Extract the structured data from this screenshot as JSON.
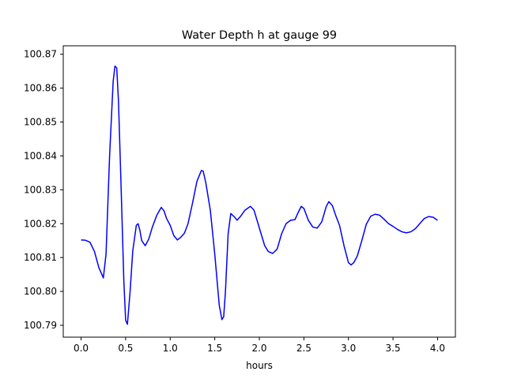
{
  "chart_data": {
    "type": "line",
    "title": "Water Depth h at gauge 99",
    "xlabel": "hours",
    "ylabel": "",
    "xlim": [
      -0.2,
      4.2
    ],
    "ylim": [
      100.7865,
      100.8725
    ],
    "xticks": [
      "0.0",
      "0.5",
      "1.0",
      "1.5",
      "2.0",
      "2.5",
      "3.0",
      "3.5",
      "4.0"
    ],
    "yticks": [
      "100.79",
      "100.80",
      "100.81",
      "100.82",
      "100.83",
      "100.84",
      "100.85",
      "100.86",
      "100.87"
    ],
    "grid": false,
    "series": [
      {
        "color": "#0000ff",
        "x": [
          0.0,
          0.05,
          0.1,
          0.15,
          0.2,
          0.25,
          0.28,
          0.32,
          0.36,
          0.38,
          0.4,
          0.42,
          0.45,
          0.48,
          0.5,
          0.52,
          0.55,
          0.58,
          0.62,
          0.64,
          0.66,
          0.68,
          0.72,
          0.76,
          0.8,
          0.85,
          0.9,
          0.93,
          0.96,
          1.0,
          1.04,
          1.08,
          1.12,
          1.16,
          1.2,
          1.25,
          1.3,
          1.35,
          1.37,
          1.4,
          1.45,
          1.5,
          1.55,
          1.58,
          1.6,
          1.62,
          1.65,
          1.68,
          1.72,
          1.75,
          1.79,
          1.84,
          1.9,
          1.94,
          1.98,
          2.02,
          2.06,
          2.1,
          2.15,
          2.2,
          2.25,
          2.3,
          2.35,
          2.4,
          2.44,
          2.47,
          2.5,
          2.55,
          2.6,
          2.65,
          2.7,
          2.75,
          2.78,
          2.82,
          2.86,
          2.9,
          2.95,
          3.0,
          3.03,
          3.06,
          3.1,
          3.15,
          3.2,
          3.25,
          3.3,
          3.35,
          3.4,
          3.45,
          3.5,
          3.55,
          3.6,
          3.65,
          3.7,
          3.75,
          3.8,
          3.85,
          3.9,
          3.95,
          4.0
        ],
        "y": [
          100.8152,
          100.8151,
          100.8145,
          100.8118,
          100.807,
          100.804,
          100.811,
          100.84,
          100.862,
          100.8665,
          100.866,
          100.856,
          100.83,
          100.803,
          100.7915,
          100.7903,
          100.8,
          100.812,
          100.8195,
          100.82,
          100.818,
          100.815,
          100.8135,
          100.8155,
          100.819,
          100.8225,
          100.8248,
          100.8238,
          100.8215,
          100.8195,
          100.8165,
          100.8152,
          100.816,
          100.8172,
          100.82,
          100.826,
          100.8325,
          100.8357,
          100.8355,
          100.832,
          100.824,
          100.811,
          100.796,
          100.7917,
          100.7925,
          100.8,
          100.817,
          100.823,
          100.822,
          100.821,
          100.8222,
          100.824,
          100.8251,
          100.824,
          100.8205,
          100.817,
          100.8135,
          100.8118,
          100.8112,
          100.8125,
          100.817,
          100.82,
          100.821,
          100.8212,
          100.8235,
          100.8251,
          100.8245,
          100.821,
          100.819,
          100.8187,
          100.8205,
          100.825,
          100.8265,
          100.8253,
          100.8222,
          100.8195,
          100.8135,
          100.8085,
          100.8078,
          100.8085,
          100.8105,
          100.815,
          100.8198,
          100.8222,
          100.8228,
          100.8225,
          100.8213,
          100.82,
          100.8192,
          100.8183,
          100.8176,
          100.8173,
          100.8176,
          100.8185,
          100.82,
          100.8215,
          100.8221,
          100.8219,
          100.821
        ]
      }
    ]
  }
}
